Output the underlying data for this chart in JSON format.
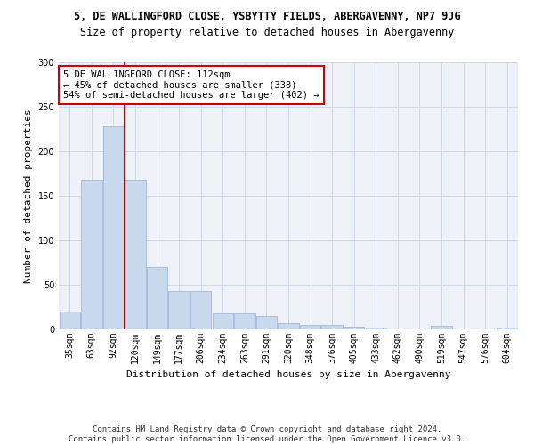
{
  "title1": "5, DE WALLINGFORD CLOSE, YSBYTTY FIELDS, ABERGAVENNY, NP7 9JG",
  "title2": "Size of property relative to detached houses in Abergavenny",
  "xlabel": "Distribution of detached houses by size in Abergavenny",
  "ylabel": "Number of detached properties",
  "categories": [
    "35sqm",
    "63sqm",
    "92sqm",
    "120sqm",
    "149sqm",
    "177sqm",
    "206sqm",
    "234sqm",
    "263sqm",
    "291sqm",
    "320sqm",
    "348sqm",
    "376sqm",
    "405sqm",
    "433sqm",
    "462sqm",
    "490sqm",
    "519sqm",
    "547sqm",
    "576sqm",
    "604sqm"
  ],
  "values": [
    20,
    168,
    228,
    168,
    70,
    43,
    43,
    18,
    18,
    15,
    7,
    5,
    5,
    3,
    2,
    0,
    0,
    4,
    0,
    0,
    2
  ],
  "bar_color": "#c8d9ed",
  "bar_edge_color": "#a0b8d8",
  "vline_color": "#cc0000",
  "annotation_text": "5 DE WALLINGFORD CLOSE: 112sqm\n← 45% of detached houses are smaller (338)\n54% of semi-detached houses are larger (402) →",
  "annotation_box_color": "white",
  "annotation_box_edge": "#cc0000",
  "ylim": [
    0,
    300
  ],
  "yticks": [
    0,
    50,
    100,
    150,
    200,
    250,
    300
  ],
  "grid_color": "#d0d8e8",
  "background_color": "#eef2f8",
  "footer": "Contains HM Land Registry data © Crown copyright and database right 2024.\nContains public sector information licensed under the Open Government Licence v3.0.",
  "title1_fontsize": 8.5,
  "title2_fontsize": 8.5,
  "xlabel_fontsize": 8,
  "ylabel_fontsize": 8,
  "tick_fontsize": 7,
  "annotation_fontsize": 7.5,
  "footer_fontsize": 6.5
}
